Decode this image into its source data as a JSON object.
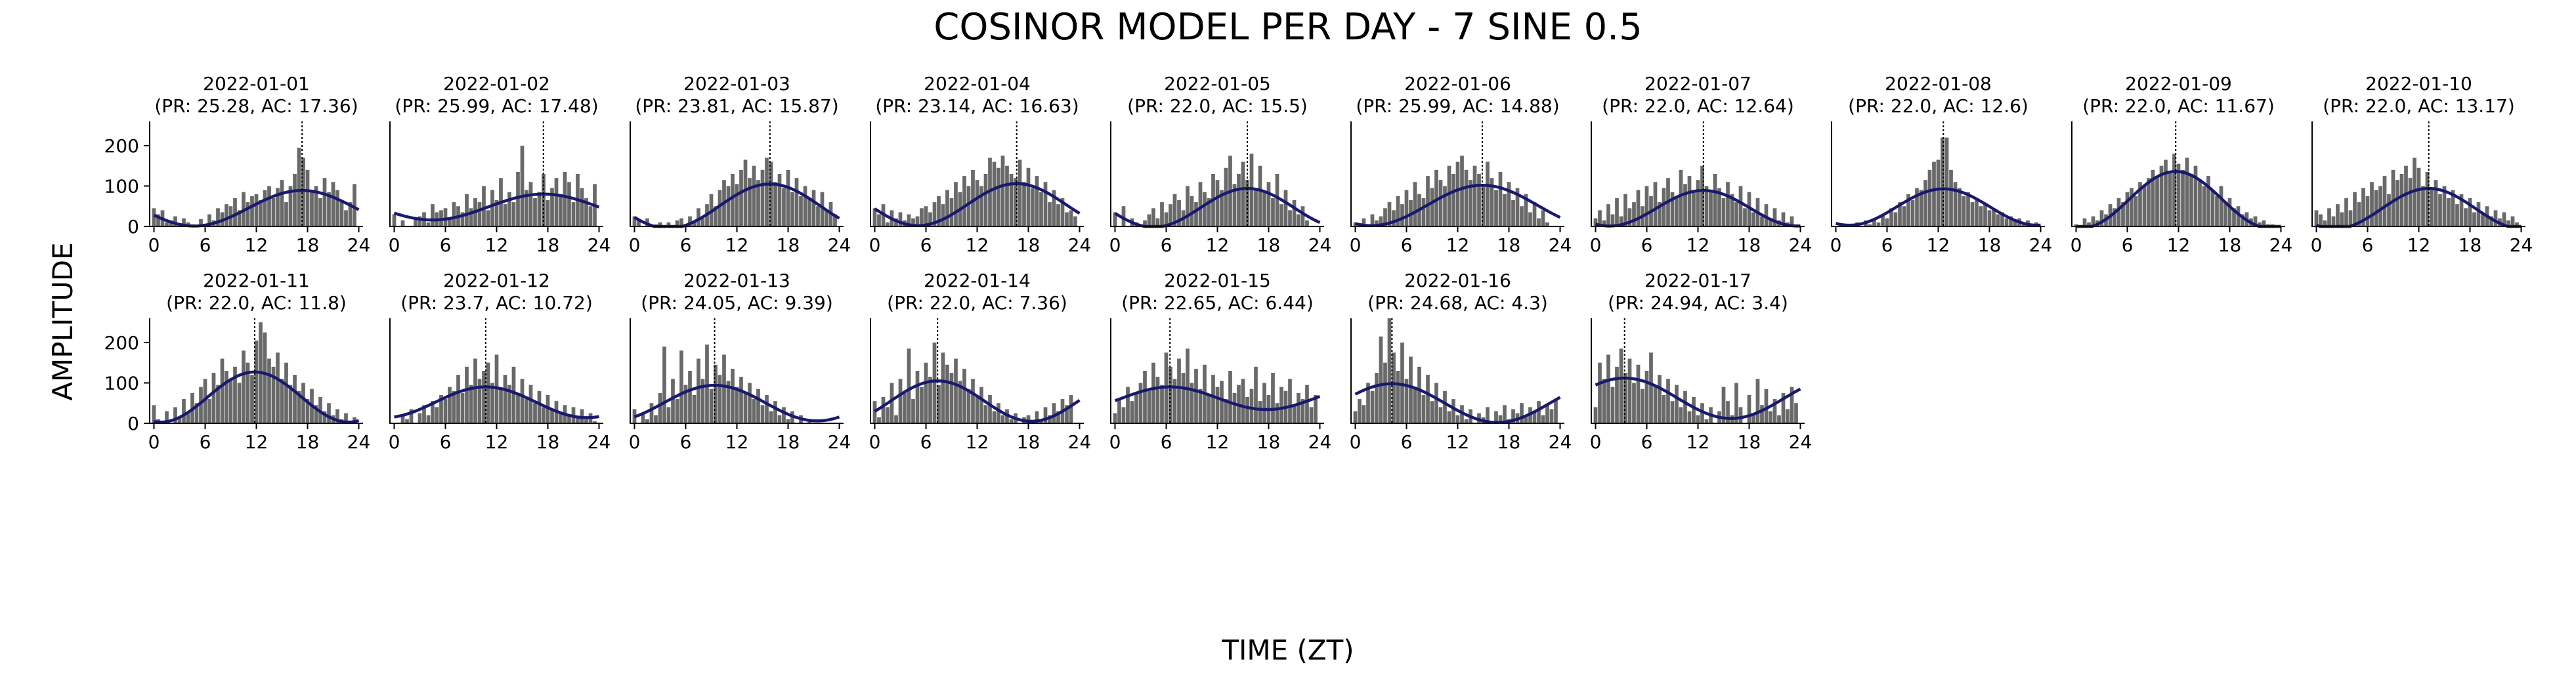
{
  "figure": {
    "title": "COSINOR MODEL PER DAY - 7 SINE 0.5",
    "xlabel": "TIME (ZT)",
    "ylabel": "AMPLITUDE"
  },
  "style": {
    "bar_color": "#696969",
    "curve_color": "#191970",
    "acrophase_line_color": "#000000"
  },
  "chart_data": {
    "type": "bar",
    "layout": "small-multiples grid, 10 columns, 2 rows",
    "x_ticks": [
      0,
      6,
      12,
      18,
      24
    ],
    "y_ticks": [
      0,
      100,
      200
    ],
    "xlim": [
      -0.5,
      24.5
    ],
    "ylim": [
      0,
      260
    ],
    "bar_x": [
      0,
      0.5,
      1,
      1.5,
      2,
      2.5,
      3,
      3.5,
      4,
      4.5,
      5,
      5.5,
      6,
      6.5,
      7,
      7.5,
      8,
      8.5,
      9,
      9.5,
      10,
      10.5,
      11,
      11.5,
      12,
      12.5,
      13,
      13.5,
      14,
      14.5,
      15,
      15.5,
      16,
      16.5,
      17,
      17.5,
      18,
      18.5,
      19,
      19.5,
      20,
      20.5,
      21,
      21.5,
      22,
      22.5,
      23,
      23.5
    ],
    "panels": [
      {
        "date": "2022-01-01",
        "subtitle": "(PR: 25.28, AC: 17.36)",
        "mesor": 45,
        "amplitude": 44,
        "acrophase": 17.36,
        "period": 25.28,
        "bars": [
          45,
          30,
          40,
          10,
          15,
          25,
          0,
          20,
          10,
          5,
          0,
          18,
          5,
          30,
          15,
          45,
          35,
          55,
          50,
          70,
          40,
          85,
          60,
          75,
          80,
          65,
          90,
          100,
          70,
          95,
          115,
          60,
          100,
          130,
          195,
          170,
          140,
          90,
          100,
          70,
          120,
          85,
          110,
          90,
          65,
          40,
          60,
          105
        ]
      },
      {
        "date": "2022-01-02",
        "subtitle": "(PR: 25.99, AC: 17.48)",
        "mesor": 48,
        "amplitude": 32,
        "acrophase": 17.48,
        "period": 25.99,
        "bars": [
          30,
          0,
          15,
          0,
          0,
          20,
          25,
          35,
          10,
          55,
          35,
          40,
          45,
          20,
          60,
          50,
          35,
          80,
          45,
          70,
          60,
          100,
          40,
          90,
          65,
          120,
          55,
          85,
          60,
          135,
          200,
          90,
          110,
          70,
          85,
          130,
          65,
          95,
          120,
          80,
          135,
          110,
          60,
          130,
          95,
          70,
          50,
          105
        ]
      },
      {
        "date": "2022-01-03",
        "subtitle": "(PR: 23.81, AC: 15.87)",
        "mesor": 50,
        "amplitude": 55,
        "acrophase": 15.87,
        "period": 23.81,
        "bars": [
          25,
          15,
          0,
          20,
          0,
          5,
          10,
          0,
          10,
          0,
          15,
          20,
          0,
          25,
          10,
          45,
          20,
          55,
          80,
          50,
          90,
          115,
          100,
          130,
          105,
          140,
          165,
          120,
          150,
          115,
          140,
          170,
          160,
          110,
          130,
          95,
          140,
          85,
          120,
          75,
          100,
          70,
          90,
          50,
          85,
          40,
          60,
          30
        ]
      },
      {
        "date": "2022-01-04",
        "subtitle": "(PR: 23.14, AC: 16.63)",
        "mesor": 54,
        "amplitude": 52,
        "acrophase": 16.63,
        "period": 23.14,
        "bars": [
          45,
          30,
          55,
          10,
          40,
          20,
          35,
          15,
          30,
          20,
          25,
          45,
          50,
          35,
          60,
          75,
          55,
          90,
          70,
          110,
          85,
          125,
          100,
          140,
          115,
          100,
          130,
          170,
          160,
          145,
          175,
          150,
          130,
          120,
          165,
          110,
          145,
          95,
          125,
          85,
          110,
          60,
          90,
          55,
          70,
          35,
          40,
          25
        ]
      },
      {
        "date": "2022-01-05",
        "subtitle": "(PR: 22.0, AC: 15.5)",
        "mesor": 46,
        "amplitude": 48,
        "acrophase": 15.5,
        "period": 22.0,
        "bars": [
          35,
          0,
          50,
          0,
          20,
          10,
          5,
          15,
          30,
          45,
          20,
          60,
          35,
          55,
          80,
          65,
          40,
          100,
          75,
          60,
          110,
          85,
          70,
          130,
          115,
          90,
          145,
          175,
          105,
          130,
          160,
          115,
          180,
          95,
          150,
          85,
          110,
          70,
          130,
          55,
          90,
          40,
          65,
          30,
          50,
          15,
          0,
          0
        ]
      },
      {
        "date": "2022-01-06",
        "subtitle": "(PR: 25.99, AC: 14.88)",
        "mesor": 52,
        "amplitude": 50,
        "acrophase": 14.88,
        "period": 25.99,
        "bars": [
          10,
          0,
          20,
          0,
          30,
          15,
          25,
          45,
          60,
          40,
          75,
          55,
          90,
          65,
          110,
          80,
          70,
          125,
          95,
          140,
          115,
          100,
          150,
          130,
          160,
          175,
          140,
          115,
          150,
          130,
          100,
          160,
          120,
          90,
          135,
          80,
          110,
          65,
          95,
          50,
          80,
          35,
          60,
          20,
          40,
          10,
          0,
          0
        ]
      },
      {
        "date": "2022-01-07",
        "subtitle": "(PR: 22.0, AC: 12.64)",
        "mesor": 45,
        "amplitude": 44,
        "acrophase": 12.64,
        "period": 22.0,
        "bars": [
          20,
          40,
          15,
          55,
          30,
          70,
          25,
          80,
          45,
          60,
          90,
          50,
          100,
          75,
          110,
          60,
          95,
          120,
          85,
          70,
          140,
          105,
          125,
          90,
          115,
          150,
          100,
          85,
          130,
          95,
          70,
          110,
          80,
          60,
          100,
          45,
          85,
          35,
          70,
          25,
          55,
          20,
          45,
          15,
          35,
          10,
          25,
          5
        ]
      },
      {
        "date": "2022-01-08",
        "subtitle": "(PR: 22.0, AC: 12.6)",
        "mesor": 48,
        "amplitude": 45,
        "acrophase": 12.6,
        "period": 22.0,
        "bars": [
          0,
          0,
          5,
          0,
          0,
          10,
          0,
          15,
          5,
          20,
          10,
          30,
          20,
          45,
          35,
          60,
          50,
          80,
          65,
          95,
          90,
          115,
          140,
          160,
          165,
          220,
          220,
          140,
          110,
          95,
          75,
          85,
          60,
          70,
          50,
          55,
          40,
          45,
          30,
          35,
          20,
          25,
          15,
          20,
          10,
          15,
          5,
          10
        ]
      },
      {
        "date": "2022-01-09",
        "subtitle": "(PR: 22.0, AC: 11.67)",
        "mesor": 66,
        "amplitude": 70,
        "acrophase": 11.67,
        "period": 22.0,
        "bars": [
          5,
          0,
          20,
          10,
          25,
          15,
          40,
          30,
          55,
          45,
          70,
          60,
          85,
          95,
          75,
          110,
          100,
          120,
          140,
          125,
          150,
          165,
          135,
          180,
          155,
          140,
          170,
          130,
          150,
          115,
          100,
          125,
          90,
          75,
          100,
          60,
          70,
          45,
          50,
          30,
          35,
          20,
          25,
          10,
          15,
          5,
          5,
          0
        ]
      },
      {
        "date": "2022-01-10",
        "subtitle": "(PR: 22.0, AC: 13.17)",
        "mesor": 44,
        "amplitude": 50,
        "acrophase": 13.17,
        "period": 22.0,
        "bars": [
          40,
          30,
          15,
          45,
          25,
          55,
          35,
          70,
          40,
          85,
          60,
          95,
          75,
          110,
          90,
          100,
          125,
          80,
          140,
          115,
          130,
          150,
          120,
          170,
          145,
          100,
          135,
          95,
          115,
          80,
          100,
          70,
          90,
          55,
          80,
          45,
          70,
          35,
          60,
          30,
          50,
          25,
          40,
          20,
          35,
          15,
          25,
          10
        ]
      },
      {
        "date": "2022-01-11",
        "subtitle": "(PR: 22.0, AC: 11.8)",
        "mesor": 65,
        "amplitude": 62,
        "acrophase": 11.8,
        "period": 22.0,
        "bars": [
          45,
          10,
          0,
          30,
          0,
          40,
          15,
          60,
          25,
          75,
          50,
          90,
          110,
          60,
          125,
          95,
          160,
          130,
          110,
          140,
          100,
          180,
          150,
          120,
          205,
          250,
          225,
          160,
          140,
          175,
          110,
          150,
          95,
          120,
          80,
          100,
          60,
          85,
          45,
          65,
          30,
          50,
          20,
          35,
          10,
          25,
          0,
          15
        ]
      },
      {
        "date": "2022-01-12",
        "subtitle": "(PR: 23.7, AC: 10.72)",
        "mesor": 52,
        "amplitude": 38,
        "acrophase": 10.72,
        "period": 23.7,
        "bars": [
          0,
          0,
          20,
          10,
          35,
          0,
          25,
          45,
          20,
          55,
          40,
          70,
          60,
          90,
          80,
          120,
          75,
          140,
          95,
          160,
          110,
          130,
          150,
          100,
          170,
          85,
          120,
          95,
          140,
          75,
          110,
          60,
          95,
          50,
          80,
          40,
          70,
          35,
          55,
          25,
          45,
          20,
          40,
          15,
          35,
          10,
          25,
          5
        ]
      },
      {
        "date": "2022-01-13",
        "subtitle": "(PR: 24.05, AC: 9.39)",
        "mesor": 50,
        "amplitude": 44,
        "acrophase": 9.39,
        "period": 24.05,
        "bars": [
          35,
          0,
          25,
          10,
          50,
          20,
          75,
          190,
          40,
          110,
          60,
          180,
          95,
          130,
          70,
          160,
          110,
          195,
          85,
          145,
          120,
          170,
          105,
          135,
          90,
          115,
          75,
          100,
          60,
          85,
          45,
          70,
          30,
          55,
          20,
          40,
          10,
          30,
          0,
          20,
          0,
          10,
          0,
          0,
          0,
          0,
          0,
          0
        ]
      },
      {
        "date": "2022-01-14",
        "subtitle": "(PR: 22.0, AC: 7.36)",
        "mesor": 55,
        "amplitude": 50,
        "acrophase": 7.36,
        "period": 22.0,
        "bars": [
          55,
          15,
          65,
          40,
          100,
          20,
          110,
          75,
          185,
          60,
          130,
          90,
          150,
          115,
          200,
          95,
          175,
          145,
          125,
          160,
          105,
          135,
          85,
          110,
          65,
          90,
          45,
          70,
          30,
          50,
          20,
          35,
          10,
          25,
          0,
          15,
          20,
          0,
          30,
          10,
          40,
          20,
          50,
          30,
          60,
          45,
          70,
          0
        ]
      },
      {
        "date": "2022-01-15",
        "subtitle": "(PR: 22.65, AC: 6.44)",
        "mesor": 62,
        "amplitude": 28,
        "acrophase": 6.44,
        "period": 22.65,
        "bars": [
          25,
          60,
          40,
          90,
          55,
          75,
          100,
          130,
          80,
          150,
          115,
          95,
          175,
          140,
          110,
          160,
          125,
          185,
          100,
          135,
          85,
          145,
          70,
          120,
          90,
          105,
          60,
          130,
          75,
          95,
          110,
          65,
          85,
          140,
          55,
          100,
          70,
          125,
          50,
          90,
          80,
          110,
          45,
          75,
          60,
          95,
          40,
          70
        ]
      },
      {
        "date": "2022-01-16",
        "subtitle": "(PR: 24.68, AC: 4.3)",
        "mesor": 50,
        "amplitude": 48,
        "acrophase": 4.3,
        "period": 24.68,
        "bars": [
          30,
          60,
          45,
          100,
          80,
          125,
          215,
          150,
          260,
          175,
          130,
          200,
          110,
          165,
          90,
          140,
          70,
          120,
          55,
          100,
          40,
          80,
          30,
          60,
          20,
          45,
          10,
          35,
          0,
          25,
          15,
          40,
          0,
          30,
          20,
          45,
          10,
          35,
          25,
          50,
          15,
          40,
          30,
          55,
          20,
          45,
          35,
          60
        ]
      },
      {
        "date": "2022-01-17",
        "subtitle": "(PR: 24.94, AC: 3.4)",
        "mesor": 62,
        "amplitude": 50,
        "acrophase": 3.4,
        "period": 24.94,
        "bars": [
          40,
          150,
          110,
          170,
          90,
          140,
          185,
          125,
          160,
          100,
          145,
          85,
          130,
          175,
          95,
          120,
          70,
          110,
          55,
          95,
          40,
          80,
          30,
          65,
          20,
          50,
          10,
          40,
          0,
          30,
          90,
          55,
          20,
          100,
          40,
          0,
          70,
          25,
          110,
          45,
          85,
          30,
          60,
          20,
          75,
          35,
          90,
          50
        ]
      }
    ]
  }
}
